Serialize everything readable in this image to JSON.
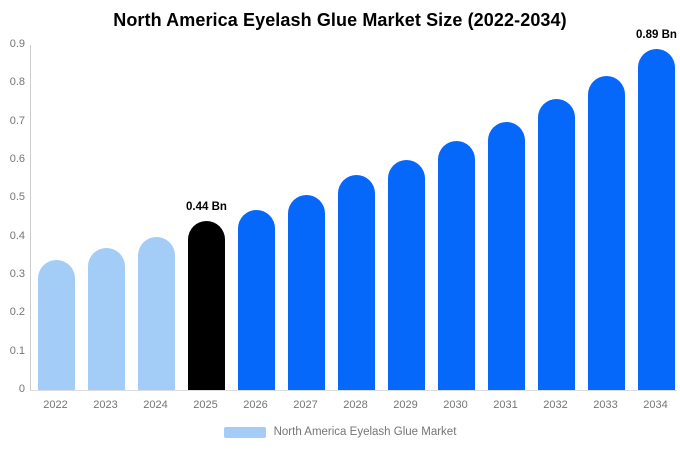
{
  "chart_data": {
    "type": "bar",
    "title": "North America Eyelash Glue Market Size (2022-2034)",
    "categories": [
      "2022",
      "2023",
      "2024",
      "2025",
      "2026",
      "2027",
      "2028",
      "2029",
      "2030",
      "2031",
      "2032",
      "2033",
      "2034"
    ],
    "values": [
      0.34,
      0.37,
      0.4,
      0.44,
      0.47,
      0.51,
      0.56,
      0.6,
      0.65,
      0.7,
      0.76,
      0.82,
      0.89
    ],
    "unit": "Bn",
    "ylim": [
      0,
      0.9
    ],
    "ytick_labels": [
      "0",
      "0.1",
      "0.2",
      "0.3",
      "0.4",
      "0.5",
      "0.6",
      "0.7",
      "0.8",
      "0.9"
    ],
    "ytick_values": [
      0,
      0.1,
      0.2,
      0.3,
      0.4,
      0.5,
      0.6,
      0.7,
      0.8,
      0.9
    ],
    "bar_colors": [
      "#a3ccf7",
      "#a3ccf7",
      "#a3ccf7",
      "#000000",
      "#0667fb",
      "#0667fb",
      "#0667fb",
      "#0667fb",
      "#0667fb",
      "#0667fb",
      "#0667fb",
      "#0667fb",
      "#0667fb"
    ],
    "annotations": [
      {
        "index": 3,
        "label": "0.44 Bn"
      },
      {
        "index": 12,
        "label": "0.89 Bn"
      }
    ],
    "legend": [
      {
        "label": "North America Eyelash Glue Market",
        "color": "#a3ccf7"
      }
    ],
    "legend_position": "bottom",
    "grid": false,
    "colors": {
      "historical": "#a3ccf7",
      "highlight": "#000000",
      "forecast": "#0667fb",
      "axis_line": "#cccccc",
      "tick_text": "#757575",
      "title_text": "#000000"
    }
  }
}
